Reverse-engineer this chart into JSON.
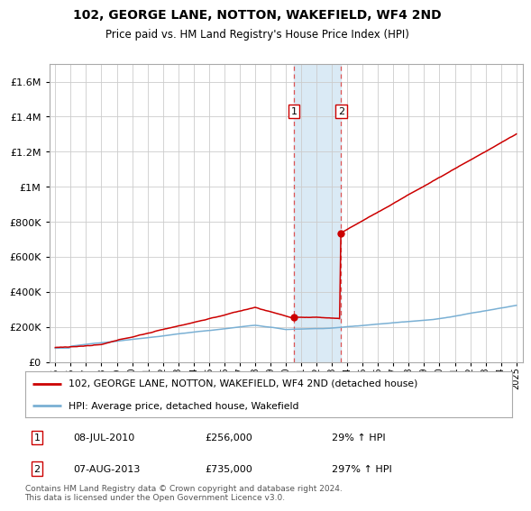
{
  "title": "102, GEORGE LANE, NOTTON, WAKEFIELD, WF4 2ND",
  "subtitle": "Price paid vs. HM Land Registry's House Price Index (HPI)",
  "legend_line1": "102, GEORGE LANE, NOTTON, WAKEFIELD, WF4 2ND (detached house)",
  "legend_line2": "HPI: Average price, detached house, Wakefield",
  "transaction1_date": "08-JUL-2010",
  "transaction1_price": 256000,
  "transaction1_hpi": "29%",
  "transaction2_date": "07-AUG-2013",
  "transaction2_price": 735000,
  "transaction2_hpi": "297%",
  "footer": "Contains HM Land Registry data © Crown copyright and database right 2024.\nThis data is licensed under the Open Government Licence v3.0.",
  "hpi_color": "#7ab0d4",
  "property_color": "#cc0000",
  "background_color": "#ffffff",
  "grid_color": "#cccccc",
  "highlight_color": "#daeaf5",
  "ylim_max": 1700000,
  "transaction1_year": 2010.52,
  "transaction2_year": 2013.6,
  "year_start": 1995,
  "year_end": 2025
}
